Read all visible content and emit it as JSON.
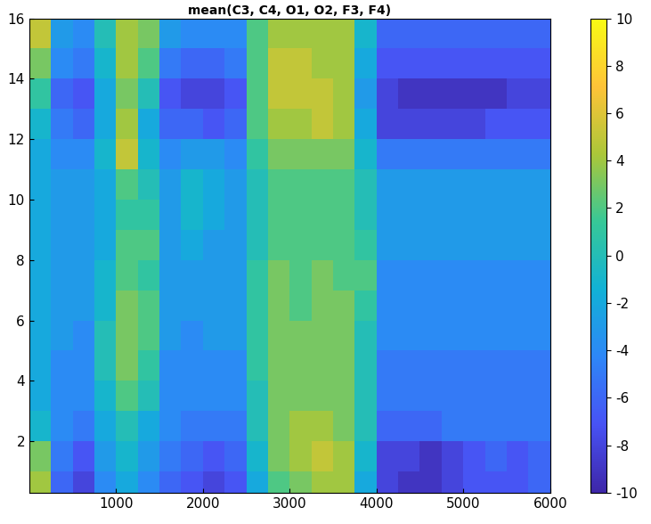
{
  "chart_data": {
    "type": "heatmap",
    "title": "mean(C3, C4, O1, O2, F3, F4)",
    "x": [
      125,
      375,
      625,
      875,
      1125,
      1375,
      1625,
      1875,
      2125,
      2375,
      2625,
      2875,
      3125,
      3375,
      3625,
      3875,
      4125,
      4375,
      4625,
      4875,
      5125,
      5375,
      5625,
      5875
    ],
    "y": [
      0.5,
      1.5,
      2.5,
      3.5,
      4.5,
      5.5,
      6.5,
      7.5,
      8.5,
      9.5,
      10.5,
      11.5,
      12.5,
      13.5,
      14.5,
      15.5
    ],
    "cells": [
      [
        4,
        -6,
        -8,
        -4,
        -2,
        -4,
        -6,
        -7,
        -8,
        -7,
        -2,
        2,
        3,
        4,
        4,
        -2,
        -8,
        -9,
        -9,
        -8,
        -7,
        -7,
        -7,
        -6
      ],
      [
        3,
        -5,
        -7,
        -3,
        -1,
        -3,
        -5,
        -6,
        -7,
        -6,
        -1,
        3,
        4,
        5,
        4,
        -1,
        -8,
        -8,
        -9,
        -8,
        -7,
        -6,
        -7,
        -6
      ],
      [
        -1,
        -4,
        -5,
        -2,
        0,
        -2,
        -4,
        -5,
        -5,
        -5,
        0,
        3,
        4,
        4,
        3,
        0,
        -6,
        -6,
        -6,
        -5,
        -5,
        -5,
        -5,
        -5
      ],
      [
        -2,
        -4,
        -4,
        -1,
        2,
        0,
        -4,
        -4,
        -4,
        -4,
        0,
        3,
        3,
        3,
        3,
        0,
        -5,
        -5,
        -5,
        -5,
        -5,
        -5,
        -5,
        -5
      ],
      [
        -2,
        -4,
        -4,
        0,
        3,
        1,
        -4,
        -4,
        -4,
        -4,
        1,
        3,
        3,
        3,
        3,
        0,
        -5,
        -5,
        -5,
        -5,
        -5,
        -5,
        -5,
        -5
      ],
      [
        -2,
        -3,
        -4,
        0,
        3,
        2,
        -3,
        -4,
        -3,
        -3,
        1,
        3,
        3,
        3,
        3,
        0,
        -4,
        -4,
        -4,
        -4,
        -4,
        -4,
        -4,
        -4
      ],
      [
        -2,
        -3,
        -3,
        -1,
        3,
        2,
        -3,
        -3,
        -3,
        -3,
        1,
        3,
        2,
        3,
        3,
        1,
        -4,
        -4,
        -4,
        -4,
        -4,
        -4,
        -4,
        -4
      ],
      [
        -2,
        -3,
        -3,
        -1,
        2,
        1,
        -3,
        -3,
        -3,
        -3,
        1,
        3,
        2,
        3,
        2,
        2,
        -4,
        -4,
        -4,
        -4,
        -4,
        -4,
        -4,
        -4
      ],
      [
        -2,
        -3,
        -3,
        -2,
        2,
        2,
        -3,
        -2,
        -3,
        -3,
        0,
        2,
        2,
        2,
        2,
        1,
        -3,
        -3,
        -3,
        -3,
        -3,
        -3,
        -3,
        -3
      ],
      [
        -2,
        -3,
        -3,
        -2,
        1,
        1,
        -3,
        -1,
        -2,
        -3,
        0,
        2,
        2,
        2,
        2,
        0,
        -3,
        -3,
        -3,
        -3,
        -3,
        -3,
        -3,
        -3
      ],
      [
        -2,
        -3,
        -3,
        -2,
        2,
        0,
        -3,
        -1,
        -2,
        -3,
        0,
        2,
        2,
        2,
        2,
        0,
        -3,
        -3,
        -3,
        -3,
        -3,
        -3,
        -3,
        -3
      ],
      [
        -2,
        -4,
        -4,
        -1,
        5,
        -1,
        -4,
        -3,
        -3,
        -4,
        1,
        3,
        3,
        3,
        3,
        -1,
        -5,
        -5,
        -5,
        -5,
        -5,
        -5,
        -5,
        -5
      ],
      [
        -1,
        -5,
        -6,
        -2,
        4,
        -2,
        -6,
        -6,
        -7,
        -6,
        2,
        4,
        4,
        5,
        4,
        -2,
        -8,
        -8,
        -8,
        -8,
        -8,
        -7,
        -7,
        -7
      ],
      [
        1,
        -6,
        -7,
        -2,
        3,
        0,
        -7,
        -8,
        -8,
        -7,
        2,
        5,
        5,
        5,
        4,
        -3,
        -8,
        -9,
        -9,
        -9,
        -9,
        -9,
        -8,
        -8
      ],
      [
        3,
        -4,
        -5,
        -1,
        4,
        2,
        -5,
        -6,
        -6,
        -5,
        2,
        5,
        5,
        4,
        4,
        -2,
        -7,
        -7,
        -7,
        -7,
        -7,
        -7,
        -7,
        -7
      ],
      [
        5,
        -3,
        -4,
        0,
        4,
        3,
        -3,
        -4,
        -4,
        -4,
        2,
        4,
        4,
        4,
        4,
        -1,
        -6,
        -6,
        -6,
        -6,
        -6,
        -6,
        -6,
        -6
      ]
    ],
    "xlim": [
      0,
      6000
    ],
    "xticks": [
      1000,
      2000,
      3000,
      4000,
      5000,
      6000
    ],
    "ylim": [
      0.3,
      16
    ],
    "yticks": [
      2,
      4,
      6,
      8,
      10,
      12,
      14,
      16
    ],
    "color_range": [
      -10,
      10
    ],
    "color_ticks": [
      -10,
      -8,
      -6,
      -4,
      -2,
      0,
      2,
      4,
      6,
      8,
      10
    ]
  }
}
